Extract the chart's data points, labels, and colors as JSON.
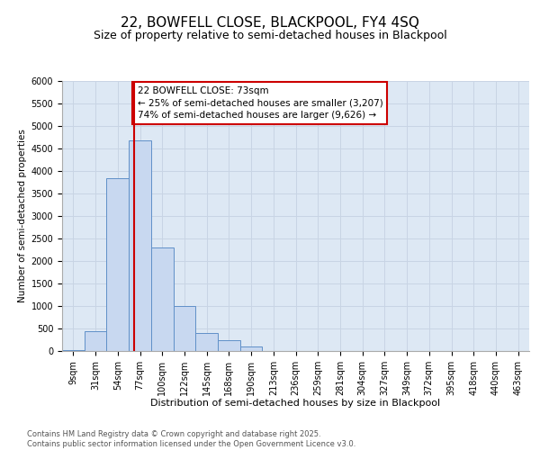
{
  "title1": "22, BOWFELL CLOSE, BLACKPOOL, FY4 4SQ",
  "title2": "Size of property relative to semi-detached houses in Blackpool",
  "xlabel": "Distribution of semi-detached houses by size in Blackpool",
  "ylabel": "Number of semi-detached properties",
  "footnote": "Contains HM Land Registry data © Crown copyright and database right 2025.\nContains public sector information licensed under the Open Government Licence v3.0.",
  "categories": [
    "9sqm",
    "31sqm",
    "54sqm",
    "77sqm",
    "100sqm",
    "122sqm",
    "145sqm",
    "168sqm",
    "190sqm",
    "213sqm",
    "236sqm",
    "259sqm",
    "281sqm",
    "304sqm",
    "327sqm",
    "349sqm",
    "372sqm",
    "395sqm",
    "418sqm",
    "440sqm",
    "463sqm"
  ],
  "values": [
    30,
    450,
    3850,
    4680,
    2300,
    1000,
    400,
    240,
    100,
    0,
    0,
    0,
    0,
    0,
    0,
    0,
    0,
    0,
    0,
    0,
    0
  ],
  "bar_color": "#c8d8f0",
  "bar_edge_color": "#6090c8",
  "vline_color": "#cc0000",
  "vline_x_index": 2.73,
  "annotation_text": "22 BOWFELL CLOSE: 73sqm\n← 25% of semi-detached houses are smaller (3,207)\n74% of semi-detached houses are larger (9,626) →",
  "annotation_box_color": "#cc0000",
  "ylim": [
    0,
    6000
  ],
  "yticks": [
    0,
    500,
    1000,
    1500,
    2000,
    2500,
    3000,
    3500,
    4000,
    4500,
    5000,
    5500,
    6000
  ],
  "grid_color": "#c8d4e4",
  "plot_bg_color": "#dde8f4",
  "fig_bg_color": "#ffffff",
  "title1_fontsize": 11,
  "title2_fontsize": 9,
  "xlabel_fontsize": 8,
  "ylabel_fontsize": 7.5,
  "tick_fontsize": 7,
  "annotation_fontsize": 7.5,
  "footnote_fontsize": 6.0
}
